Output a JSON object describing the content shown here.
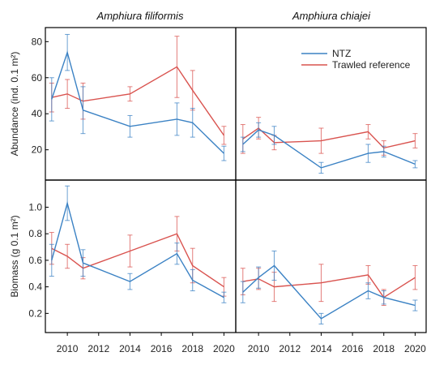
{
  "chart_data": {
    "type": "line",
    "layout": "2x2 panel grid",
    "columns": [
      "Amphiura filiformis",
      "Amphiura chiajei"
    ],
    "legend": {
      "placement": "top-right of Amphiura chiajei abundance panel",
      "items": [
        {
          "name": "NTZ",
          "color": "#3b82c4"
        },
        {
          "name": "Trawled reference",
          "color": "#d9534f"
        }
      ]
    },
    "x_axis": {
      "ticks": [
        2010,
        2012,
        2014,
        2016,
        2018,
        2020
      ],
      "range": [
        2008.7,
        2020.6
      ]
    },
    "rows": [
      {
        "metric": "abundance",
        "ylabel": "Abundance (ind. 0.1 m²)",
        "yrange": [
          5,
          86
        ],
        "yticks": [
          20,
          40,
          60,
          80
        ]
      },
      {
        "metric": "biomass",
        "ylabel": "Biomass (g 0.1 m²)",
        "yrange": [
          0.08,
          1.18
        ],
        "yticks": [
          "0.2",
          "0.4",
          "0.6",
          "0.8",
          "1.0"
        ]
      }
    ],
    "panels": [
      {
        "species": "Amphiura filiformis",
        "metric": "abundance",
        "show_title": true,
        "series": [
          {
            "name": "NTZ",
            "x": [
              2009,
              2010,
              2011,
              2014,
              2017,
              2018,
              2020
            ],
            "y": [
              48,
              74,
              42,
              33,
              37,
              35,
              18
            ],
            "err": [
              12,
              10,
              13,
              6,
              9,
              8,
              4
            ]
          },
          {
            "name": "Trawled reference",
            "x": [
              2009,
              2010,
              2011,
              2014,
              2017,
              2018,
              2020
            ],
            "y": [
              49,
              51,
              47,
              51,
              66,
              53,
              28
            ],
            "err": [
              8,
              8,
              10,
              4,
              17,
              11,
              5
            ]
          }
        ]
      },
      {
        "species": "Amphiura chiajei",
        "metric": "abundance",
        "show_title": true,
        "series": [
          {
            "name": "NTZ",
            "x": [
              2009,
              2010,
              2011,
              2014,
              2017,
              2018,
              2020
            ],
            "y": [
              23,
              31,
              28,
              10,
              18,
              19,
              12
            ],
            "err": [
              4,
              4,
              5,
              3,
              5,
              3,
              2
            ]
          },
          {
            "name": "Trawled reference",
            "x": [
              2009,
              2010,
              2011,
              2014,
              2017,
              2018,
              2020
            ],
            "y": [
              26,
              32,
              24,
              25,
              30,
              21,
              25
            ],
            "err": [
              8,
              6,
              4,
              7,
              4,
              4,
              4
            ]
          }
        ]
      },
      {
        "species": "Amphiura filiformis",
        "metric": "biomass",
        "show_title": false,
        "series": [
          {
            "name": "NTZ",
            "x": [
              2009,
              2010,
              2011,
              2014,
              2017,
              2018,
              2020
            ],
            "y": [
              0.6,
              1.03,
              0.58,
              0.44,
              0.65,
              0.45,
              0.32
            ],
            "err": [
              0.12,
              0.13,
              0.1,
              0.06,
              0.08,
              0.08,
              0.04
            ]
          },
          {
            "name": "Trawled reference",
            "x": [
              2009,
              2010,
              2011,
              2014,
              2017,
              2018,
              2020
            ],
            "y": [
              0.69,
              0.63,
              0.54,
              0.67,
              0.8,
              0.56,
              0.4
            ],
            "err": [
              0.12,
              0.09,
              0.08,
              0.12,
              0.13,
              0.13,
              0.07
            ]
          }
        ]
      },
      {
        "species": "Amphiura chiajei",
        "metric": "biomass",
        "show_title": false,
        "series": [
          {
            "name": "NTZ",
            "x": [
              2009,
              2010,
              2011,
              2014,
              2017,
              2018,
              2020
            ],
            "y": [
              0.36,
              0.47,
              0.56,
              0.16,
              0.37,
              0.32,
              0.26
            ],
            "err": [
              0.08,
              0.08,
              0.11,
              0.04,
              0.06,
              0.05,
              0.04
            ]
          },
          {
            "name": "Trawled reference",
            "x": [
              2009,
              2010,
              2011,
              2014,
              2017,
              2018,
              2020
            ],
            "y": [
              0.44,
              0.46,
              0.4,
              0.43,
              0.49,
              0.32,
              0.47
            ],
            "err": [
              0.1,
              0.08,
              0.11,
              0.14,
              0.07,
              0.06,
              0.09
            ]
          }
        ]
      }
    ]
  }
}
